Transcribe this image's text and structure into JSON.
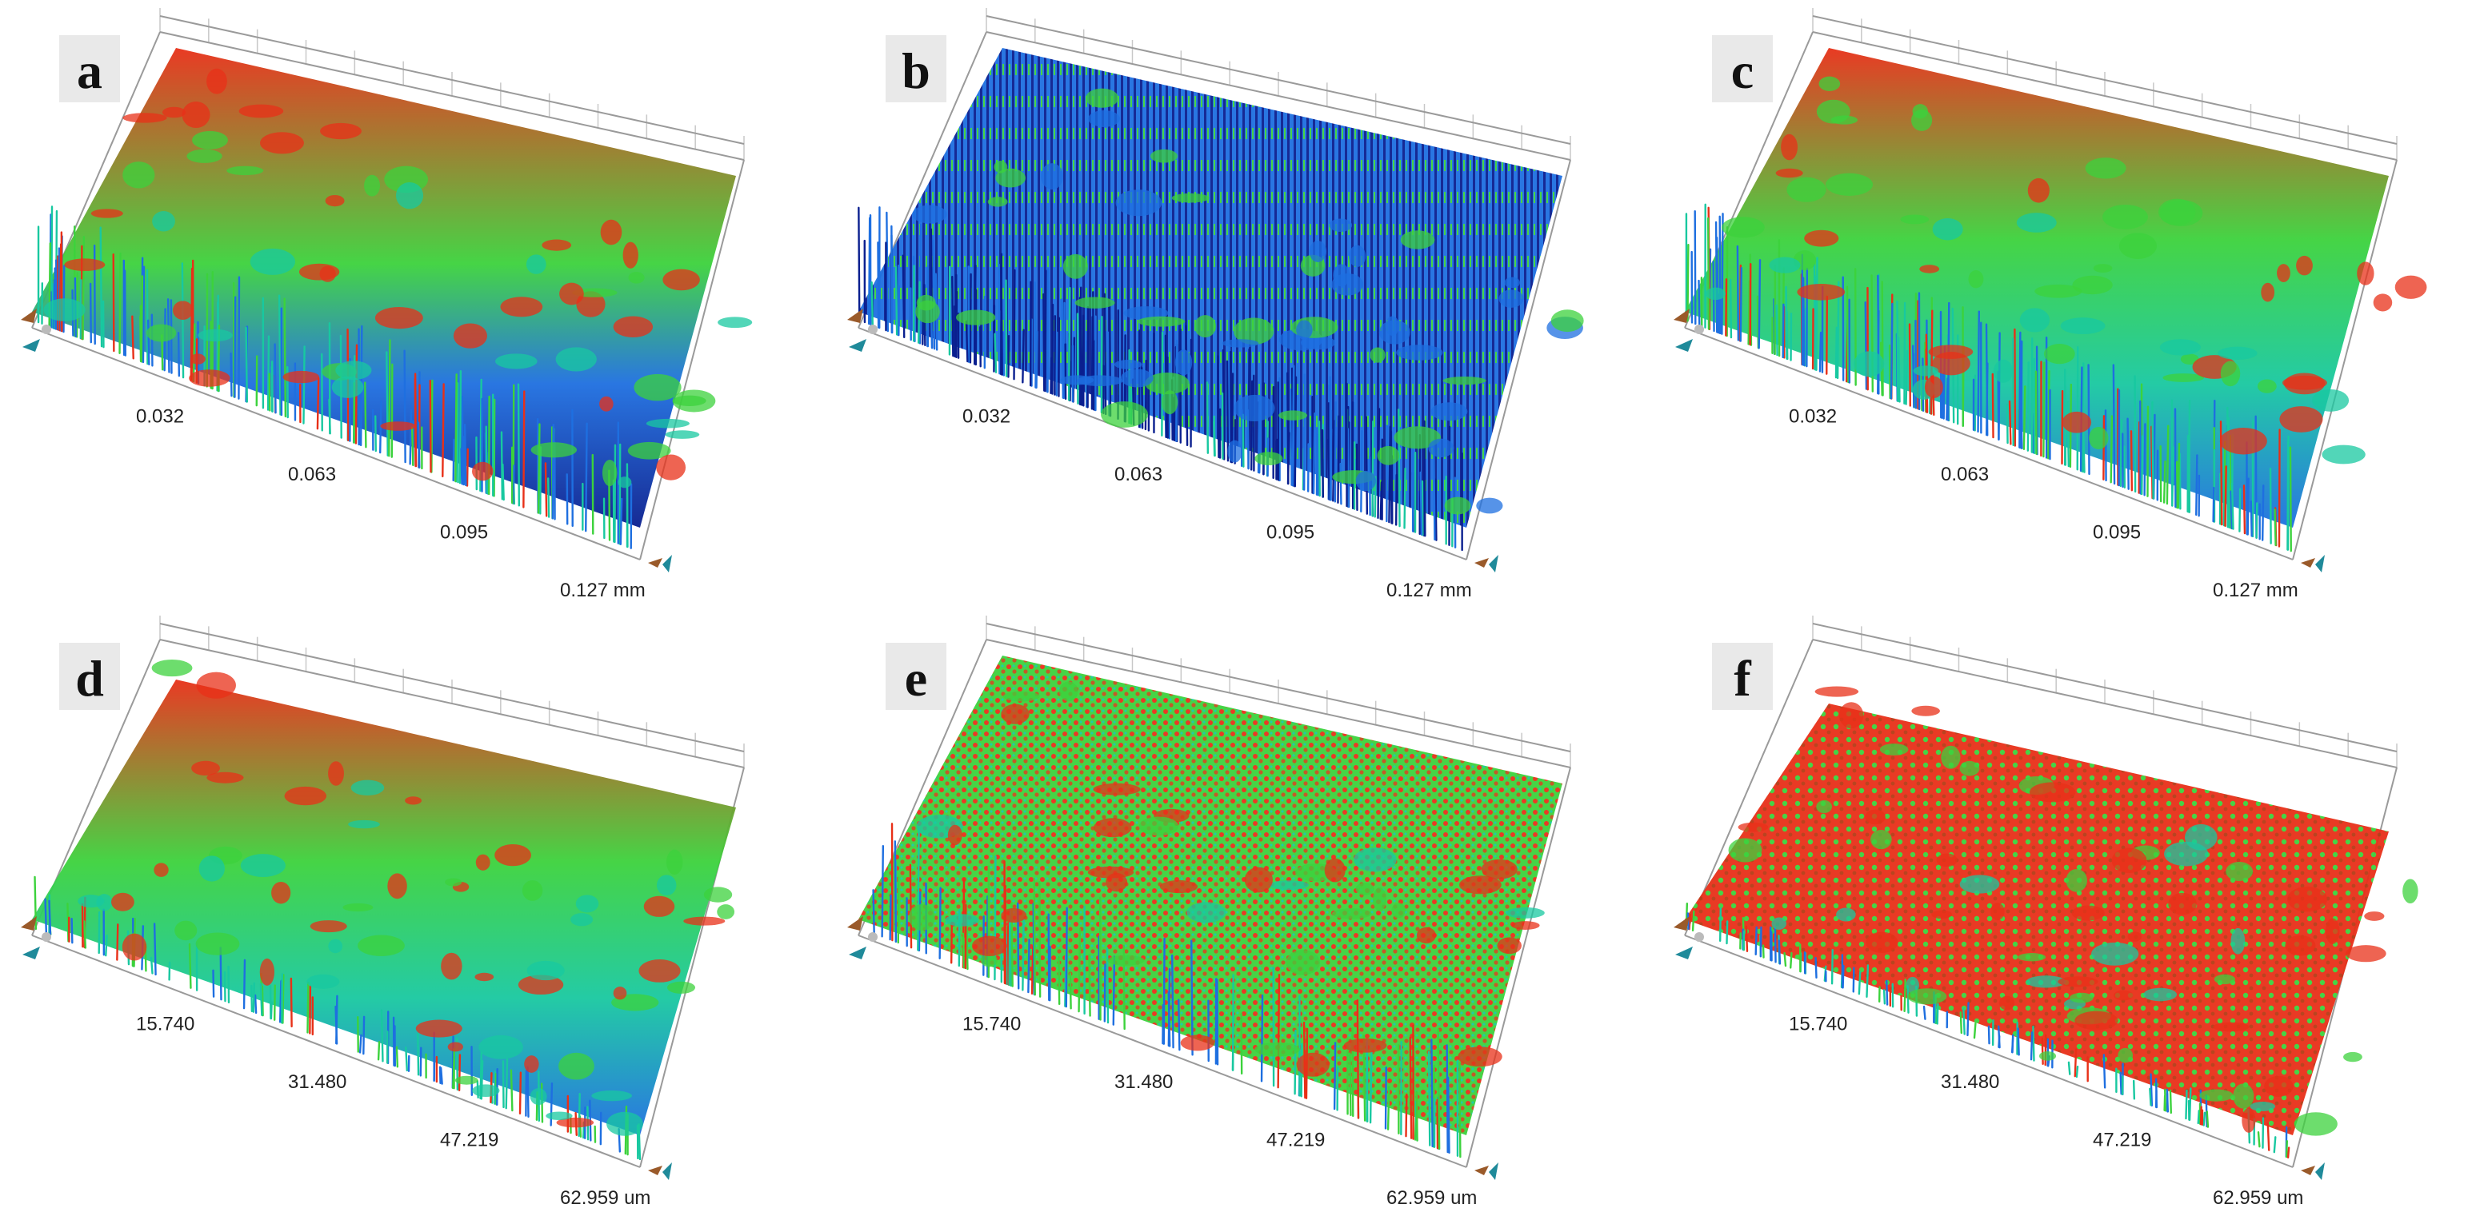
{
  "figure": {
    "panels": [
      {
        "id": "a",
        "label": "a",
        "ticks": [
          "0.032",
          "0.063",
          "0.095",
          "0.127 mm"
        ],
        "roughness": "high-peaks",
        "dominant": "red-top"
      },
      {
        "id": "b",
        "label": "b",
        "ticks": [
          "0.032",
          "0.063",
          "0.095",
          "0.127 mm"
        ],
        "roughness": "dense-spikes",
        "dominant": "blue"
      },
      {
        "id": "c",
        "label": "c",
        "ticks": [
          "0.032",
          "0.063",
          "0.095",
          "0.127 mm"
        ],
        "roughness": "dense-spikes",
        "dominant": "green"
      },
      {
        "id": "d",
        "label": "d",
        "ticks": [
          "15.740",
          "31.480",
          "47.219",
          "62.959 um"
        ],
        "roughness": "smooth-hills",
        "dominant": "red-green"
      },
      {
        "id": "e",
        "label": "e",
        "ticks": [
          "15.740",
          "31.480",
          "47.219",
          "62.959 um"
        ],
        "roughness": "fine-grain",
        "dominant": "red-green"
      },
      {
        "id": "f",
        "label": "f",
        "ticks": [
          "15.740",
          "31.480",
          "47.219",
          "62.959 um"
        ],
        "roughness": "low-relief",
        "dominant": "red"
      }
    ],
    "colors": {
      "low": "#0a1f8f",
      "mid_low": "#1e6fe0",
      "mid": "#18c8a0",
      "mid_high": "#3cd23c",
      "high": "#e83018",
      "axis_gizmo_brown": "#9a5a2a",
      "axis_gizmo_teal": "#1f8a9a"
    }
  }
}
